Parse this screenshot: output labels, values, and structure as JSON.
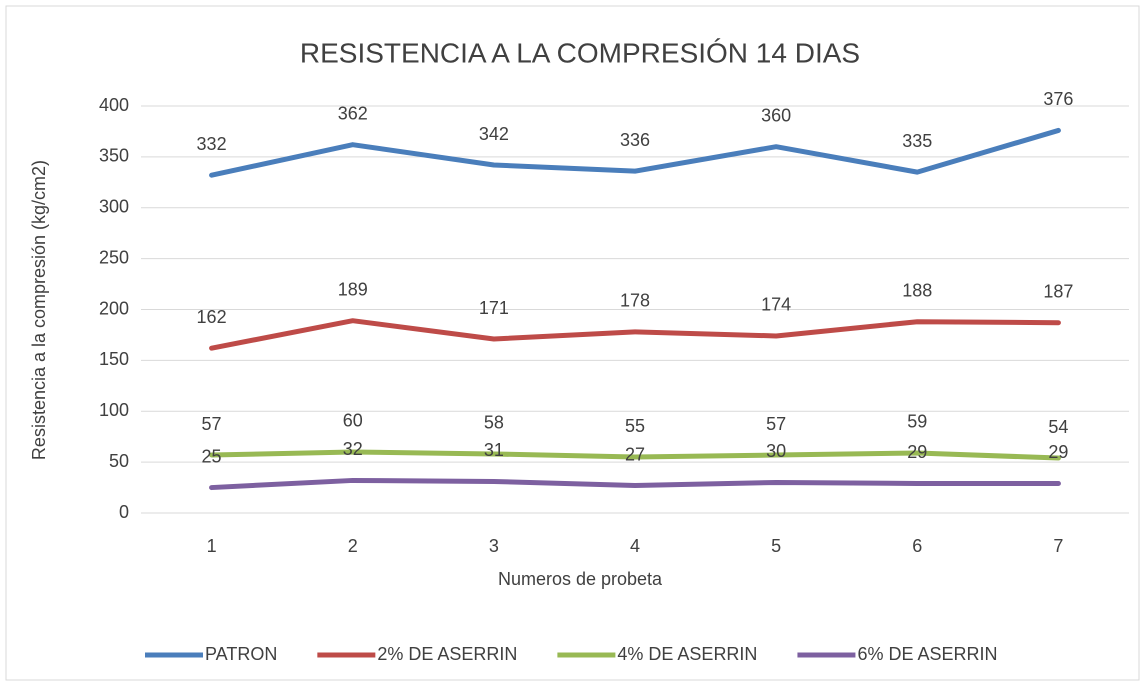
{
  "chart_data": {
    "type": "line",
    "title": "RESISTENCIA A   LA COMPRESIÓN 14 DIAS",
    "x_label": "Numeros de probeta",
    "y_label": "Resistencia a la compresión (kg/cm2)",
    "categories": [
      "1",
      "2",
      "3",
      "4",
      "5",
      "6",
      "7"
    ],
    "series": [
      {
        "name": "PATRON",
        "color": "#4a7ebb",
        "values": [
          332,
          362,
          342,
          336,
          360,
          335,
          376
        ]
      },
      {
        "name": "2% DE ASERRIN",
        "color": "#be4b48",
        "values": [
          162,
          189,
          171,
          178,
          174,
          188,
          187
        ]
      },
      {
        "name": "4% DE ASERRIN",
        "color": "#98b954",
        "values": [
          57,
          60,
          58,
          55,
          57,
          59,
          54
        ]
      },
      {
        "name": "6% DE ASERRIN",
        "color": "#7d60a0",
        "values": [
          25,
          32,
          31,
          27,
          30,
          29,
          29
        ]
      }
    ],
    "ylim": [
      0,
      400
    ],
    "yticks": [
      0,
      50,
      100,
      150,
      200,
      250,
      300,
      350,
      400
    ],
    "grid": true,
    "legend": "bottom"
  }
}
